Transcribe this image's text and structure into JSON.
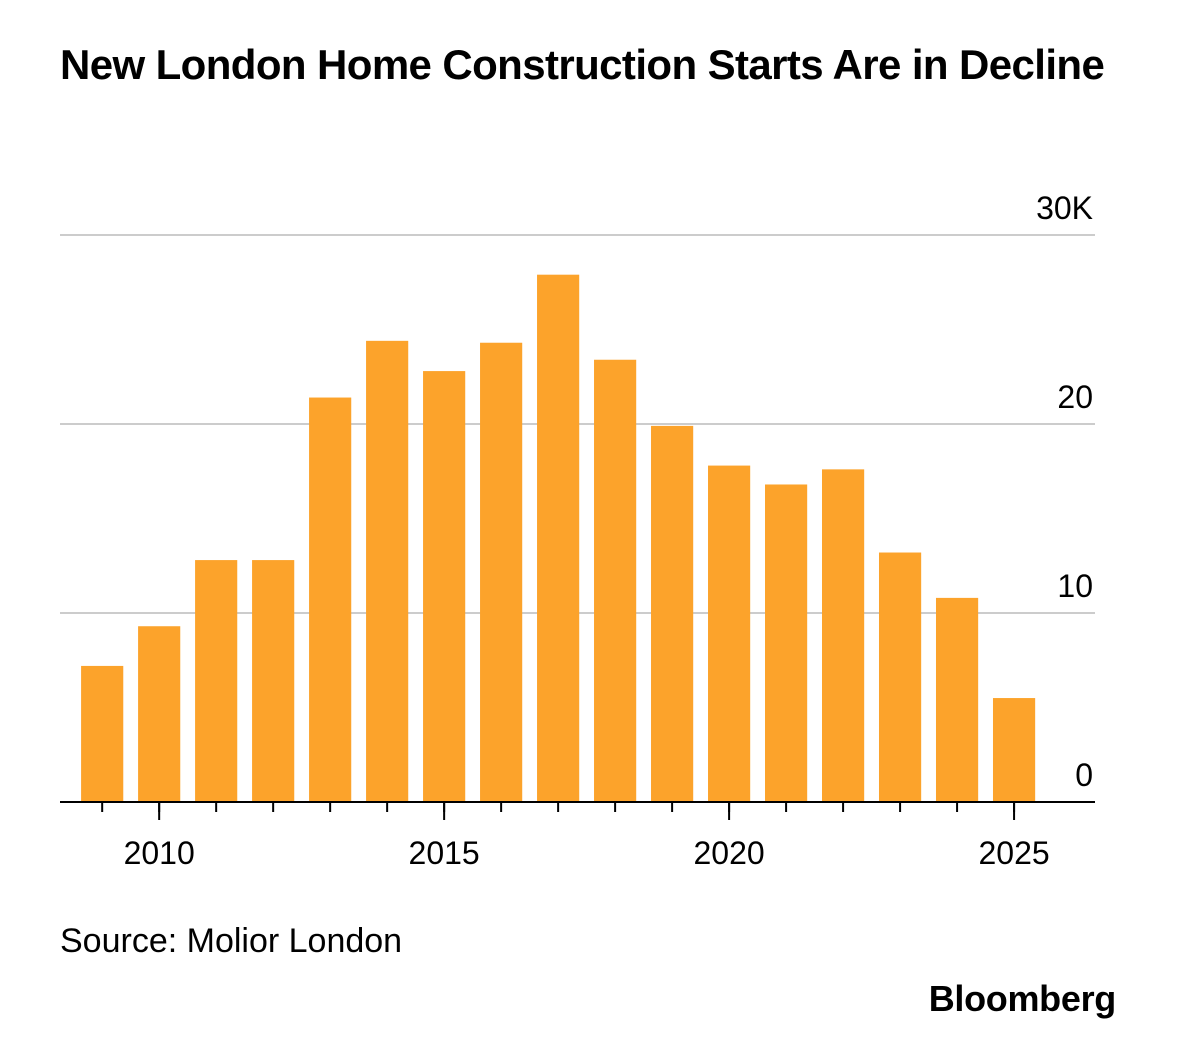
{
  "chart_data": {
    "type": "bar",
    "title": "New London Home Construction Starts Are in Decline",
    "source": "Source: Molior London",
    "brand": "Bloomberg",
    "x": [
      2009,
      2010,
      2011,
      2012,
      2013,
      2014,
      2015,
      2016,
      2017,
      2018,
      2019,
      2020,
      2021,
      2022,
      2023,
      2024,
      2025
    ],
    "values": [
      7.2,
      9.3,
      12.8,
      12.8,
      21.4,
      24.4,
      22.8,
      24.3,
      27.9,
      23.4,
      19.9,
      17.8,
      16.8,
      17.6,
      13.2,
      10.8,
      5.5
    ],
    "color": "#fca32b",
    "xlim": [
      2008.26,
      2026.42
    ],
    "xticks": [
      2010,
      2015,
      2020,
      2025
    ],
    "ylim": [
      0,
      30
    ],
    "yticks": [
      0,
      10,
      20,
      {
        "value": 30,
        "label": "30K"
      }
    ],
    "grid": true,
    "y_axis_side": "right"
  }
}
